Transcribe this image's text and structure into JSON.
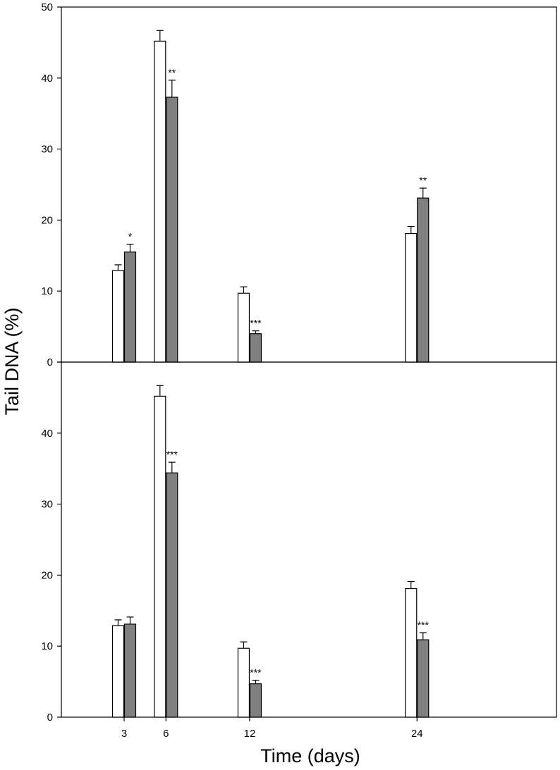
{
  "chart_data": {
    "type": "bar",
    "ylabel": "Tail DNA (%)",
    "xlabel": "Time (days)",
    "x_ticks": [
      3,
      6,
      12,
      24
    ],
    "x_range": [
      -1.5,
      34
    ],
    "ylim": [
      0,
      50
    ],
    "y_ticks": [
      0,
      10,
      20,
      30,
      40,
      50
    ],
    "grid": false,
    "legend": "none",
    "colors": {
      "control": "#ffffff",
      "treated": "#808080"
    },
    "panels": [
      {
        "id": "top",
        "y_tick_labels": [
          "0",
          "10",
          "20",
          "30",
          "40",
          "50"
        ],
        "groups": [
          {
            "day": 3,
            "control": 12.9,
            "control_err": 0.8,
            "treated": 15.5,
            "treated_err": 1.1,
            "sig": "*"
          },
          {
            "day": 6,
            "control": 45.2,
            "control_err": 1.5,
            "treated": 37.3,
            "treated_err": 2.4,
            "sig": "**"
          },
          {
            "day": 12,
            "control": 9.7,
            "control_err": 0.9,
            "treated": 4.0,
            "treated_err": 0.4,
            "sig": "***"
          },
          {
            "day": 24,
            "control": 18.1,
            "control_err": 1.0,
            "treated": 23.1,
            "treated_err": 1.4,
            "sig": "**"
          }
        ]
      },
      {
        "id": "bottom",
        "y_tick_labels": [
          "0",
          "10",
          "20",
          "30",
          "40",
          ""
        ],
        "groups": [
          {
            "day": 3,
            "control": 12.9,
            "control_err": 0.8,
            "treated": 13.1,
            "treated_err": 1.0,
            "sig": ""
          },
          {
            "day": 6,
            "control": 45.2,
            "control_err": 1.5,
            "treated": 34.4,
            "treated_err": 1.5,
            "sig": "***"
          },
          {
            "day": 12,
            "control": 9.7,
            "control_err": 0.9,
            "treated": 4.7,
            "treated_err": 0.5,
            "sig": "***"
          },
          {
            "day": 24,
            "control": 18.1,
            "control_err": 1.0,
            "treated": 10.9,
            "treated_err": 1.0,
            "sig": "***"
          }
        ]
      }
    ]
  }
}
